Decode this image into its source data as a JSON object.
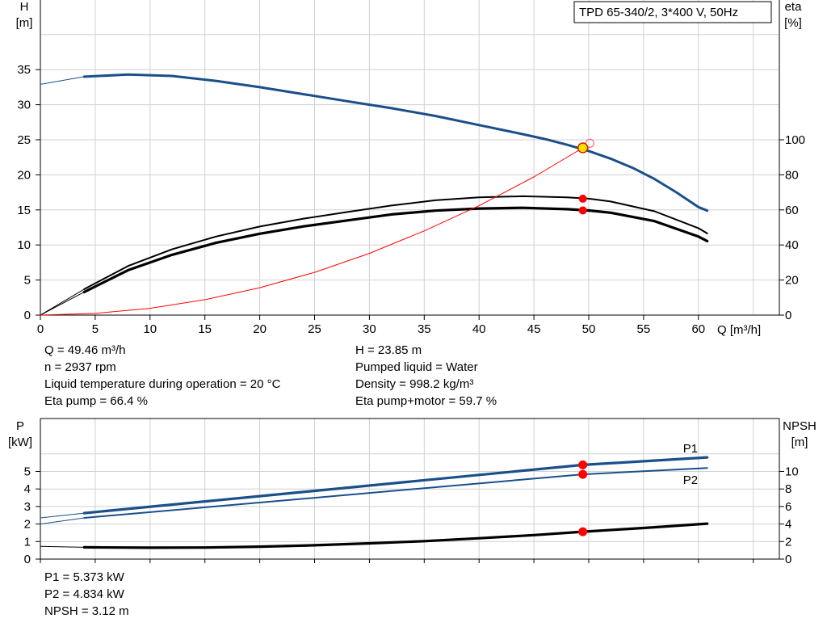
{
  "chart_data": [
    {
      "type": "line",
      "title": "TPD 65-340/2, 3*400 V, 50Hz",
      "xlabel": "Q [m³/h]",
      "ylabel_left": [
        "H",
        "[m]"
      ],
      "ylabel_right": [
        "eta",
        "[%]"
      ],
      "xlim": [
        0,
        65
      ],
      "ylim_left": [
        0,
        40
      ],
      "ylim_right": [
        0,
        160
      ],
      "x_ticks": [
        0,
        5,
        10,
        15,
        20,
        25,
        30,
        35,
        40,
        45,
        50,
        55,
        60
      ],
      "y_ticks_left": [
        0,
        5,
        10,
        15,
        20,
        25,
        30,
        35
      ],
      "y_ticks_right": [
        0,
        20,
        40,
        60,
        80,
        100
      ],
      "grid": true,
      "series": [
        {
          "axis": "left",
          "color": "#1a4f8a",
          "x": [
            4,
            8,
            12,
            16,
            20,
            24,
            28,
            32,
            36,
            40,
            44,
            46,
            48,
            50,
            52,
            54,
            56,
            58,
            60,
            60.8
          ],
          "y": [
            34,
            34.3,
            34.1,
            33.4,
            32.5,
            31.5,
            30.5,
            29.5,
            28.4,
            27.1,
            25.8,
            25.1,
            24.3,
            23.4,
            22.3,
            21.0,
            19.4,
            17.5,
            15.4,
            14.9
          ],
          "extension_x": [
            0,
            4
          ],
          "extension_y": [
            32.9,
            34
          ]
        },
        {
          "axis": "right",
          "color": "#000000",
          "x": [
            4,
            8,
            12,
            16,
            20,
            24,
            28,
            32,
            36,
            40,
            44,
            48,
            50,
            52,
            56,
            60,
            60.8
          ],
          "y": [
            14.8,
            28,
            37.5,
            44.8,
            50.5,
            55,
            58.8,
            62.5,
            65.5,
            67.2,
            67.8,
            67.2,
            66.4,
            64.8,
            59.2,
            49.6,
            46.6
          ],
          "extension_x": [
            0,
            4
          ],
          "extension_y": [
            0,
            14.8
          ]
        },
        {
          "axis": "right",
          "color": "#000000",
          "x": [
            4,
            8,
            12,
            16,
            20,
            24,
            28,
            32,
            36,
            40,
            44,
            48,
            50,
            52,
            56,
            60,
            60.8
          ],
          "y": [
            13.2,
            25.6,
            34.4,
            41.2,
            46.4,
            50.6,
            54,
            57.4,
            59.6,
            60.8,
            61.2,
            60.4,
            59.7,
            58.4,
            53.6,
            44.8,
            42.2
          ],
          "extension_x": [
            0,
            4
          ],
          "extension_y": [
            0,
            13.2
          ]
        },
        {
          "axis": "left",
          "color": "#ff0000",
          "x": [
            0,
            5,
            10,
            15,
            20,
            25,
            30,
            35,
            40,
            45,
            49.46
          ],
          "y": [
            0,
            0.24,
            0.97,
            2.2,
            3.9,
            6.1,
            8.8,
            12,
            15.6,
            19.7,
            23.85
          ]
        }
      ],
      "operating_point": {
        "x": 49.46,
        "H": 23.85,
        "eta_pump": 66.4,
        "eta_pump_motor": 59.7
      }
    },
    {
      "type": "line",
      "xlabel": "",
      "ylabel_left": [
        "P",
        "[kW]"
      ],
      "ylabel_right": [
        "NPSH",
        "[m]"
      ],
      "xlim": [
        0,
        65
      ],
      "ylim_left": [
        0,
        6.5
      ],
      "ylim_right": [
        0,
        13
      ],
      "y_ticks_left": [
        0,
        1,
        2,
        3,
        4,
        5
      ],
      "y_ticks_right": [
        0,
        2,
        4,
        6,
        8,
        10
      ],
      "grid": true,
      "series": [
        {
          "name": "P1",
          "axis": "left",
          "color": "#1a4f8a",
          "x": [
            4,
            49.46,
            60.8
          ],
          "y": [
            2.62,
            5.373,
            5.8
          ],
          "extension_x": [
            0,
            4
          ],
          "extension_y": [
            2.35,
            2.62
          ]
        },
        {
          "name": "P2",
          "axis": "left",
          "color": "#1a4f8a",
          "x": [
            4,
            49.46,
            60.8
          ],
          "y": [
            2.35,
            4.834,
            5.2
          ],
          "extension_x": [
            0,
            4
          ],
          "extension_y": [
            2.0,
            2.35
          ]
        },
        {
          "axis": "right",
          "color": "#000000",
          "x": [
            4,
            10,
            15,
            20,
            25,
            30,
            35,
            40,
            45,
            49.46,
            55,
            60.8
          ],
          "y": [
            1.35,
            1.3,
            1.32,
            1.42,
            1.58,
            1.8,
            2.05,
            2.38,
            2.74,
            3.12,
            3.55,
            4.05
          ],
          "extension_x": [
            0,
            4
          ],
          "extension_y": [
            1.45,
            1.35
          ]
        }
      ],
      "operating_point": {
        "x": 49.46,
        "P1": 5.373,
        "P2": 4.834,
        "NPSH": 3.12
      }
    }
  ],
  "info": {
    "q": "Q = 49.46 m³/h",
    "n": "n = 2937 rpm",
    "temp": "Liquid temperature during operation = 20 °C",
    "eta_pump": "Eta pump = 66.4 %",
    "h": "H = 23.85 m",
    "liquid": "Pumped liquid = Water",
    "density": "Density = 998.2 kg/m³",
    "eta_pm": "Eta pump+motor = 59.7 %",
    "p1": "P1 = 5.373 kW",
    "p2": "P2 = 4.834 kW",
    "npsh": "NPSH = 3.12 m"
  }
}
